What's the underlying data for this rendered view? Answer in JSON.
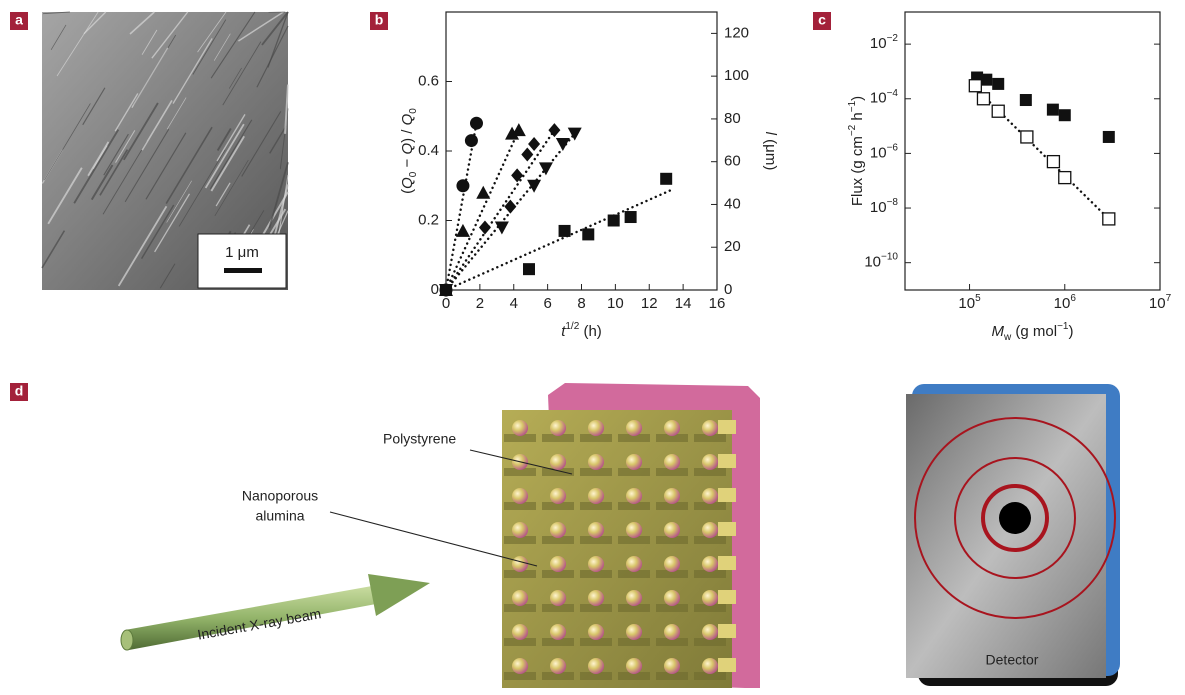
{
  "panels": [
    "a",
    "b",
    "c",
    "d"
  ],
  "micrograph": {
    "scale_bar": "1 μm"
  },
  "chart_data": [
    {
      "type": "scatter",
      "x_label": [
        {
          "text": "t",
          "style": "italic"
        },
        {
          "text": "1/2",
          "style": "sup"
        },
        {
          "text": " (h)",
          "style": "normal"
        }
      ],
      "y_label": [
        {
          "text": "(",
          "style": "normal"
        },
        {
          "text": "Q",
          "style": "italic"
        },
        {
          "text": "0",
          "style": "sub"
        },
        {
          "text": " − ",
          "style": "normal"
        },
        {
          "text": "Q",
          "style": "italic"
        },
        {
          "text": ") / ",
          "style": "normal"
        },
        {
          "text": "Q",
          "style": "italic"
        },
        {
          "text": "0",
          "style": "sub"
        }
      ],
      "y2_label": [
        {
          "text": "l",
          "style": "italic"
        },
        {
          "text": " (μm)",
          "style": "normal"
        }
      ],
      "xlim": [
        0,
        16
      ],
      "xticks": [
        0,
        2,
        4,
        6,
        8,
        10,
        12,
        14,
        16
      ],
      "ylim": [
        0,
        0.8
      ],
      "yticks": [
        0,
        0.2,
        0.4,
        0.6
      ],
      "y2lim": [
        0,
        130
      ],
      "y2ticks": [
        0,
        20,
        40,
        60,
        80,
        100,
        120
      ],
      "series": [
        {
          "marker": "circle",
          "color": "#111111",
          "x": [
            0,
            1.0,
            1.5,
            1.8
          ],
          "values": [
            0,
            0.3,
            0.43,
            0.48
          ],
          "fit": {
            "x": [
              0,
              1.8
            ],
            "values": [
              0,
              0.48
            ]
          }
        },
        {
          "marker": "triangle-up",
          "color": "#111111",
          "x": [
            0,
            1.0,
            2.2,
            3.9,
            4.3
          ],
          "values": [
            0,
            0.17,
            0.28,
            0.45,
            0.46
          ],
          "fit": {
            "x": [
              0,
              4.3
            ],
            "values": [
              0,
              0.46
            ]
          }
        },
        {
          "marker": "diamond",
          "color": "#111111",
          "x": [
            2.3,
            3.8,
            4.2,
            4.8,
            5.2,
            6.4
          ],
          "values": [
            0.18,
            0.24,
            0.33,
            0.39,
            0.42,
            0.46
          ],
          "fit": {
            "x": [
              0,
              6.4
            ],
            "values": [
              0,
              0.46
            ]
          }
        },
        {
          "marker": "triangle-down",
          "color": "#111111",
          "x": [
            0,
            3.3,
            5.2,
            5.9,
            6.9,
            7.6
          ],
          "values": [
            0,
            0.18,
            0.3,
            0.35,
            0.42,
            0.45
          ],
          "fit": {
            "x": [
              0,
              7.6
            ],
            "values": [
              0,
              0.45
            ]
          }
        },
        {
          "marker": "square",
          "color": "#111111",
          "x": [
            0,
            4.9,
            7.0,
            8.4,
            9.9,
            10.9,
            13.0
          ],
          "values": [
            0,
            0.06,
            0.17,
            0.16,
            0.2,
            0.21,
            0.32
          ],
          "fit": {
            "x": [
              0,
              13.4
            ],
            "values": [
              0,
              0.29
            ]
          }
        }
      ]
    },
    {
      "type": "scatter",
      "xscale": "log",
      "yscale": "log",
      "x_label": [
        {
          "text": "M",
          "style": "italic"
        },
        {
          "text": "w",
          "style": "sub"
        },
        {
          "text": " (g mol",
          "style": "normal"
        },
        {
          "text": "−1",
          "style": "sup"
        },
        {
          "text": ")",
          "style": "normal"
        }
      ],
      "y_label": [
        {
          "text": "Flux (g cm",
          "style": "normal"
        },
        {
          "text": "−2",
          "style": "sup"
        },
        {
          "text": " h",
          "style": "normal"
        },
        {
          "text": "−1",
          "style": "sup"
        },
        {
          "text": ")",
          "style": "normal"
        }
      ],
      "xlim": [
        21000,
        10000000
      ],
      "xticks": [
        {
          "value": 100000,
          "label": "105"
        },
        {
          "value": 1000000,
          "label": "106"
        },
        {
          "value": 10000000,
          "label": "107"
        }
      ],
      "ylim": [
        1e-11,
        0.15
      ],
      "yticks": [
        {
          "value": 1e-10,
          "label": "10−10"
        },
        {
          "value": 1e-08,
          "label": "10−8"
        },
        {
          "value": 1e-06,
          "label": "10−6"
        },
        {
          "value": 0.0001,
          "label": "10−4"
        },
        {
          "value": 0.01,
          "label": "10−2"
        }
      ],
      "series": [
        {
          "marker": "square",
          "color": "#111111",
          "x": [
            120000,
            150000,
            200000,
            390000,
            750000,
            1000000,
            2900000
          ],
          "values": [
            0.0006,
            0.0005,
            0.00035,
            9e-05,
            4e-05,
            2.5e-05,
            4e-06
          ]
        },
        {
          "marker": "open-square",
          "color": "#111111",
          "x": [
            115000,
            140000,
            200000,
            400000,
            760000,
            1000000,
            2900000
          ],
          "values": [
            0.0003,
            0.0001,
            3.5e-05,
            4e-06,
            5e-07,
            1.3e-07,
            4e-09
          ],
          "fit": {
            "x": [
              150000,
              2900000
            ],
            "values": [
              0.0001,
              4e-09
            ]
          }
        }
      ]
    }
  ],
  "diagram": {
    "polystyrene": "Polystyrene",
    "alumina": [
      "Nanoporous",
      "alumina"
    ],
    "beam": "Incident X-ray beam",
    "detector": "Detector"
  }
}
